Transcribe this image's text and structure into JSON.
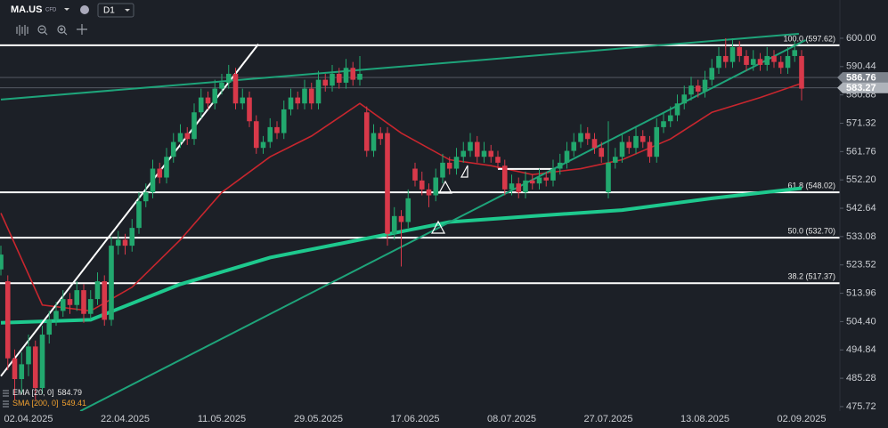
{
  "header": {
    "symbol": "MA.US",
    "kind": "CFD",
    "timeframe": "D1"
  },
  "chart_data": {
    "type": "candlestick",
    "categories": [
      null,
      null,
      null,
      null,
      "02.04.2025",
      null,
      null,
      null,
      null,
      null,
      null,
      null,
      null,
      null,
      null,
      null,
      null,
      null,
      "22.04.2025",
      null,
      null,
      null,
      null,
      null,
      null,
      null,
      null,
      null,
      null,
      null,
      null,
      null,
      "11.05.2025",
      null,
      null,
      null,
      null,
      null,
      null,
      null,
      null,
      null,
      null,
      null,
      null,
      null,
      "29.05.2025",
      null,
      null,
      null,
      null,
      null,
      null,
      null,
      null,
      null,
      null,
      null,
      null,
      null,
      "17.06.2025",
      null,
      null,
      null,
      null,
      null,
      null,
      null,
      null,
      null,
      null,
      null,
      null,
      null,
      "08.07.2025",
      null,
      null,
      null,
      null,
      null,
      null,
      null,
      null,
      null,
      null,
      null,
      null,
      null,
      "27.07.2025",
      null,
      null,
      null,
      null,
      null,
      null,
      null,
      null,
      null,
      null,
      null,
      null,
      null,
      "13.08.2025",
      null,
      null,
      null,
      null,
      null,
      null,
      null,
      null,
      null,
      null,
      null,
      null,
      null,
      "02.09.2025"
    ],
    "ohlc": [
      [
        522,
        530,
        520,
        527
      ],
      [
        518,
        520,
        488,
        492
      ],
      [
        492,
        495,
        478,
        485
      ],
      [
        485,
        494,
        480,
        490
      ],
      [
        490,
        500,
        486,
        496
      ],
      [
        496,
        498,
        478,
        482
      ],
      [
        482,
        503,
        480,
        500
      ],
      [
        500,
        508,
        497,
        505
      ],
      [
        505,
        511,
        503,
        508
      ],
      [
        508,
        515,
        506,
        512
      ],
      [
        512,
        514,
        507,
        510
      ],
      [
        510,
        518,
        508,
        515
      ],
      [
        515,
        517,
        504,
        507
      ],
      [
        507,
        515,
        505,
        512
      ],
      [
        512,
        521,
        510,
        518
      ],
      [
        518,
        520,
        503,
        505
      ],
      [
        505,
        533,
        503,
        530
      ],
      [
        530,
        535,
        527,
        532
      ],
      [
        532,
        534,
        527,
        530
      ],
      [
        530,
        539,
        528,
        536
      ],
      [
        536,
        548,
        534,
        545
      ],
      [
        545,
        551,
        543,
        548
      ],
      [
        548,
        559,
        546,
        556
      ],
      [
        556,
        558,
        551,
        553
      ],
      [
        553,
        563,
        551,
        560
      ],
      [
        560,
        568,
        558,
        565
      ],
      [
        565,
        571,
        563,
        568
      ],
      [
        568,
        570,
        564,
        566
      ],
      [
        566,
        578,
        564,
        575
      ],
      [
        575,
        583,
        573,
        580
      ],
      [
        580,
        582,
        576,
        578
      ],
      [
        578,
        586,
        576,
        583
      ],
      [
        583,
        588,
        581,
        585
      ],
      [
        585,
        591,
        583,
        588
      ],
      [
        588,
        590,
        576,
        578
      ],
      [
        578,
        583,
        576,
        580
      ],
      [
        580,
        582,
        570,
        572
      ],
      [
        572,
        574,
        561,
        563
      ],
      [
        563,
        567,
        561,
        565
      ],
      [
        565,
        573,
        563,
        570
      ],
      [
        570,
        572,
        566,
        568
      ],
      [
        568,
        579,
        566,
        576
      ],
      [
        576,
        583,
        574,
        580
      ],
      [
        580,
        582,
        576,
        578
      ],
      [
        578,
        586,
        576,
        583
      ],
      [
        583,
        585,
        576,
        578
      ],
      [
        578,
        589,
        576,
        586
      ],
      [
        586,
        588,
        582,
        584
      ],
      [
        584,
        591,
        582,
        588
      ],
      [
        588,
        590,
        583,
        585
      ],
      [
        585,
        593,
        583,
        590
      ],
      [
        590,
        592,
        584,
        586
      ],
      [
        586,
        594,
        584,
        588
      ],
      [
        575,
        577,
        560,
        562
      ],
      [
        562,
        571,
        560,
        568
      ],
      [
        568,
        570,
        564,
        566
      ],
      [
        568,
        570,
        530,
        534
      ],
      [
        534,
        543,
        532,
        540
      ],
      [
        540,
        542,
        523,
        538
      ],
      [
        538,
        549,
        536,
        546
      ],
      [
        556,
        558,
        550,
        552
      ],
      [
        552,
        555,
        547,
        549
      ],
      [
        549,
        551,
        543,
        547
      ],
      [
        547,
        556,
        545,
        553
      ],
      [
        553,
        561,
        551,
        558
      ],
      [
        558,
        560,
        554,
        556
      ],
      [
        556,
        563,
        554,
        560
      ],
      [
        560,
        565,
        558,
        562
      ],
      [
        562,
        568,
        560,
        565
      ],
      [
        565,
        567,
        558,
        560
      ],
      [
        560,
        565,
        558,
        562
      ],
      [
        562,
        564,
        558,
        560
      ],
      [
        560,
        562,
        556,
        558
      ],
      [
        557,
        559,
        547,
        549
      ],
      [
        549,
        554,
        547,
        551
      ],
      [
        551,
        553,
        546,
        548
      ],
      [
        548,
        555,
        546,
        552
      ],
      [
        552,
        554,
        549,
        551
      ],
      [
        551,
        556,
        549,
        553
      ],
      [
        553,
        555,
        550,
        552
      ],
      [
        552,
        559,
        550,
        556
      ],
      [
        556,
        561,
        554,
        558
      ],
      [
        558,
        565,
        556,
        562
      ],
      [
        562,
        568,
        560,
        565
      ],
      [
        565,
        571,
        563,
        568
      ],
      [
        568,
        570,
        564,
        566
      ],
      [
        566,
        568,
        561,
        563
      ],
      [
        563,
        565,
        558,
        560
      ],
      [
        548,
        572,
        546,
        558
      ],
      [
        558,
        563,
        556,
        560
      ],
      [
        560,
        568,
        558,
        565
      ],
      [
        565,
        567,
        561,
        563
      ],
      [
        563,
        570,
        561,
        567
      ],
      [
        567,
        569,
        563,
        565
      ],
      [
        565,
        567,
        558,
        560
      ],
      [
        560,
        573,
        558,
        570
      ],
      [
        570,
        575,
        568,
        572
      ],
      [
        572,
        577,
        570,
        574
      ],
      [
        574,
        581,
        572,
        578
      ],
      [
        578,
        584,
        576,
        581
      ],
      [
        581,
        587,
        579,
        584
      ],
      [
        584,
        586,
        580,
        582
      ],
      [
        582,
        589,
        580,
        586
      ],
      [
        586,
        593,
        584,
        590
      ],
      [
        590,
        597,
        588,
        594
      ],
      [
        594,
        600,
        590,
        592
      ],
      [
        592,
        600,
        590,
        597
      ],
      [
        597,
        599,
        592,
        594
      ],
      [
        594,
        596,
        589,
        591
      ],
      [
        591,
        596,
        589,
        593
      ],
      [
        593,
        595,
        589,
        591
      ],
      [
        591,
        597,
        589,
        594
      ],
      [
        594,
        596,
        590,
        592
      ],
      [
        592,
        594,
        588,
        590
      ],
      [
        590,
        597,
        588,
        594
      ],
      [
        594,
        599,
        592,
        596
      ],
      [
        594,
        596,
        579,
        583
      ]
    ],
    "up_color": "#22a86e",
    "down_color": "#d8394a",
    "indicators": [
      {
        "name": "EMA [20, 0]",
        "value_label": "584.79",
        "color": "#c8262e",
        "width": 1.6,
        "x": [
          0,
          6,
          13,
          19,
          26,
          32,
          39,
          45,
          52,
          58,
          65,
          71,
          77,
          84,
          90,
          97,
          103,
          110,
          116
        ],
        "values": [
          541,
          510,
          508,
          516,
          532,
          548,
          560,
          567,
          578,
          568,
          559,
          557,
          554,
          556,
          559,
          566,
          575,
          580,
          584.79
        ]
      },
      {
        "name": "SMA [200, 0]",
        "value_label": "549.41",
        "color": "#1ec98e",
        "width": 4,
        "x": [
          0,
          13,
          26,
          39,
          52,
          65,
          77,
          90,
          103,
          116
        ],
        "values": [
          504,
          505,
          517,
          526,
          532,
          538,
          540,
          542,
          546,
          549.41
        ]
      }
    ],
    "levels": [
      {
        "value": 597.62,
        "label": "100.0 (597.62)"
      },
      {
        "value": 548.02,
        "label": "61.8 (548.02)"
      },
      {
        "value": 532.7,
        "label": "50.0 (532.70)"
      },
      {
        "value": 517.37,
        "label": "38.2 (517.37)"
      }
    ],
    "trendlines": [
      {
        "color": "#ffffff",
        "x": [
          0,
          37.3
        ],
        "values": [
          486,
          598
        ]
      },
      {
        "color": "#ffffff",
        "x": [
          72,
          79.9
        ],
        "values": [
          555.9,
          555.9
        ]
      },
      {
        "color": "#1ea47a",
        "x": [
          0,
          115.6
        ],
        "values": [
          579.3,
          601.5
        ]
      },
      {
        "color": "#1ea47a",
        "x": [
          11.5,
          116.6
        ],
        "values": [
          474.2,
          599.4
        ]
      }
    ],
    "price_tags": [
      {
        "value": 586.76,
        "color": "#7d838c"
      },
      {
        "value": 583.27,
        "color": "#aeb3ba"
      }
    ],
    "ylim": [
      474.2,
      612.9
    ],
    "yticks": [
      {
        "value": 600,
        "label": "600.00"
      },
      590.44,
      580.88,
      571.32,
      561.76,
      {
        "value": 552.2,
        "label": "552.20"
      },
      542.64,
      533.08,
      523.52,
      513.96,
      {
        "value": 504.4,
        "label": "504.40"
      },
      494.84,
      485.28,
      475.72
    ]
  }
}
